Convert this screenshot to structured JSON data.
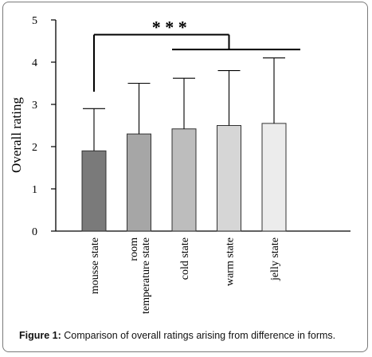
{
  "chart_data": {
    "type": "bar",
    "title": "",
    "xlabel": "",
    "ylabel": "Overall rating",
    "ylim": [
      0,
      5
    ],
    "yticks": [
      0,
      1,
      2,
      3,
      4,
      5
    ],
    "grid": false,
    "categories": [
      {
        "label": [
          "mousse state"
        ],
        "value": 1.9,
        "error": 1.0,
        "color": "#7a7a7a"
      },
      {
        "label": [
          "room",
          "temperature state"
        ],
        "value": 2.3,
        "error": 1.2,
        "color": "#a6a6a6"
      },
      {
        "label": [
          "cold state"
        ],
        "value": 2.42,
        "error": 1.2,
        "color": "#bdbdbd"
      },
      {
        "label": [
          "warm state"
        ],
        "value": 2.5,
        "error": 1.3,
        "color": "#d6d6d6"
      },
      {
        "label": [
          "jelly state"
        ],
        "value": 2.55,
        "error": 1.55,
        "color": "#ececec"
      }
    ],
    "significance": {
      "label": "* * *",
      "from_category_index": 0,
      "to_category_indices": [
        2,
        3,
        4
      ],
      "bracket_level": 4.65,
      "bar_level": 4.3,
      "drop_to_level": 3.3
    }
  },
  "caption": {
    "label": "Figure 1:",
    "text": " Comparison of overall ratings arising from difference in forms."
  }
}
